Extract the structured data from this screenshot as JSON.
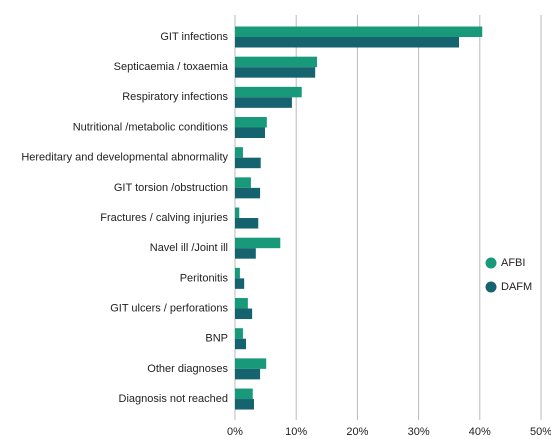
{
  "chart_data": {
    "type": "hbar",
    "categories": [
      "GIT infections",
      "Septicaemia / toxaemia",
      "Respiratory infections",
      "Nutritional /metabolic conditions",
      "Hereditary and developmental abnormality",
      "GIT torsion /obstruction",
      "Fractures / calving injuries",
      "Navel ill /Joint ill",
      "Peritonitis",
      "GIT ulcers / perforations",
      "BNP",
      "Other diagnoses",
      "Diagnosis not reached"
    ],
    "series": [
      {
        "name": "AFBI",
        "color": "#17997a",
        "values": [
          40.4,
          13.4,
          10.9,
          5.2,
          1.3,
          2.6,
          0.7,
          7.4,
          0.8,
          2.1,
          1.3,
          5.1,
          2.9
        ]
      },
      {
        "name": "DAFM",
        "color": "#14636f",
        "values": [
          36.6,
          13.1,
          9.3,
          4.9,
          4.2,
          4.1,
          3.8,
          3.4,
          1.5,
          2.8,
          1.8,
          4.1,
          3.1
        ]
      }
    ],
    "xlim": [
      0,
      50
    ],
    "xticks": [
      {
        "value": 0,
        "label": "0%"
      },
      {
        "value": 10,
        "label": "10%"
      },
      {
        "value": 20,
        "label": "20%"
      },
      {
        "value": 30,
        "label": "30%"
      },
      {
        "value": 40,
        "label": "40%"
      },
      {
        "value": 50,
        "label": "50%"
      }
    ],
    "grid": true,
    "legend": "right"
  }
}
